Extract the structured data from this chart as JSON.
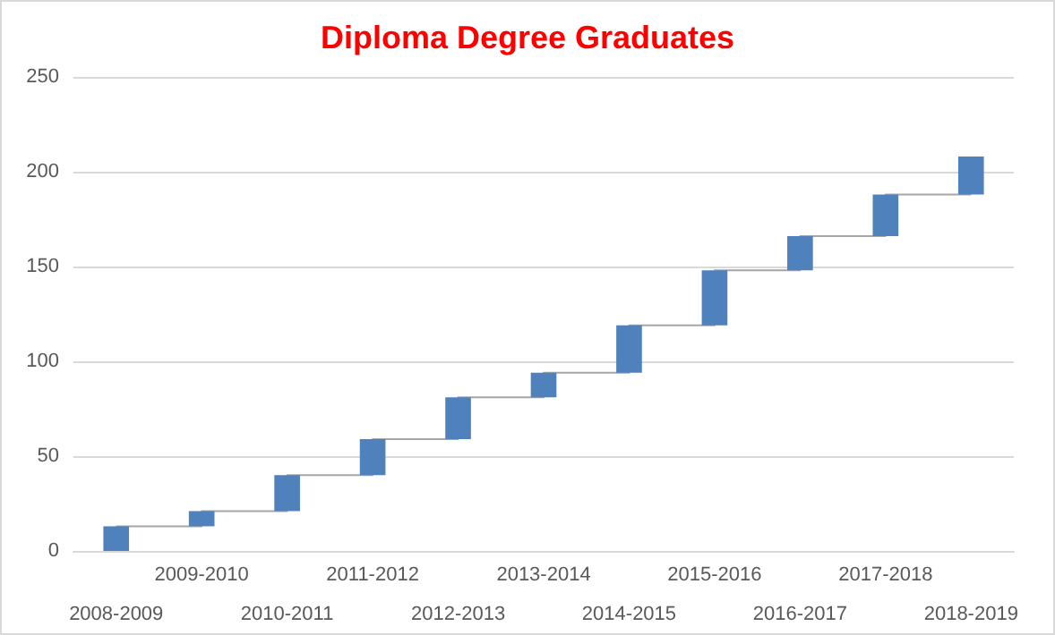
{
  "chart_data": {
    "type": "bar",
    "title": "Diploma Degree Graduates",
    "categories": [
      "2008-2009",
      "2009-2010",
      "2010-2011",
      "2011-2012",
      "2012-2013",
      "2013-2014",
      "2014-2015",
      "2015-2016",
      "2016-2017",
      "2017-2018",
      "2018-2019"
    ],
    "series": [
      {
        "color": "#4f81bd",
        "values": [
          13,
          8,
          19,
          19,
          22,
          13,
          25,
          29,
          18,
          22,
          20
        ],
        "base": [
          0,
          13,
          21,
          40,
          59,
          81,
          94,
          119,
          148,
          166,
          188
        ]
      },
      {
        "type": "step",
        "color": "#a6a6a6",
        "values": [
          13,
          21,
          40,
          59,
          81,
          94,
          119,
          148,
          166,
          188,
          188
        ]
      }
    ],
    "ylim": [
      0,
      250
    ],
    "yticks": [
      0,
      50,
      100,
      150,
      200,
      250
    ],
    "grid": "y"
  }
}
